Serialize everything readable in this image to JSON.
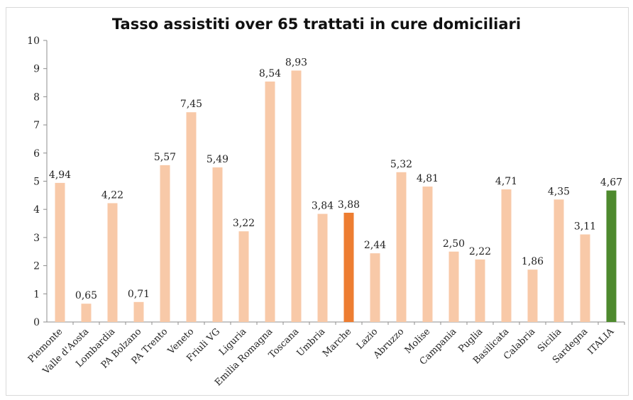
{
  "chart_data": {
    "type": "bar",
    "title": "Tasso assistiti over 65 trattati in cure domiciliari",
    "xlabel": "",
    "ylabel": "",
    "ylim": [
      0,
      10
    ],
    "yticks": [
      "0",
      "1",
      "2",
      "3",
      "4",
      "5",
      "6",
      "7",
      "8",
      "9",
      "10"
    ],
    "grid": false,
    "categories": [
      "Piemonte",
      "Valle d'Aosta",
      "Lombardia",
      "PA Bolzano",
      "PA Trento",
      "Veneto",
      "Friuli VG",
      "Liguria",
      "Emilia Romagna",
      "Toscana",
      "Umbria",
      "Marche",
      "Lazio",
      "Abruzzo",
      "Molise",
      "Campania",
      "Puglia",
      "Basilicata",
      "Calabria",
      "Sicilia",
      "Sardegna",
      "ITALIA"
    ],
    "values": [
      4.94,
      0.65,
      4.22,
      0.71,
      5.57,
      7.45,
      5.49,
      3.22,
      8.54,
      8.93,
      3.84,
      3.88,
      2.44,
      5.32,
      4.81,
      2.5,
      2.22,
      4.71,
      1.86,
      4.35,
      3.11,
      4.67
    ],
    "value_labels": [
      "4,94",
      "0,65",
      "4,22",
      "0,71",
      "5,57",
      "7,45",
      "5,49",
      "3,22",
      "8,54",
      "8,93",
      "3,84",
      "3,88",
      "2,44",
      "5,32",
      "4,81",
      "2,50",
      "2,22",
      "4,71",
      "1,86",
      "4,35",
      "3,11",
      "4,67"
    ],
    "colors": {
      "default": "#f8c9a8",
      "highlight": "#ed7d31",
      "total": "#4e8a2e"
    },
    "bar_colors": [
      "default",
      "default",
      "default",
      "default",
      "default",
      "default",
      "default",
      "default",
      "default",
      "default",
      "default",
      "highlight",
      "default",
      "default",
      "default",
      "default",
      "default",
      "default",
      "default",
      "default",
      "default",
      "total"
    ]
  }
}
